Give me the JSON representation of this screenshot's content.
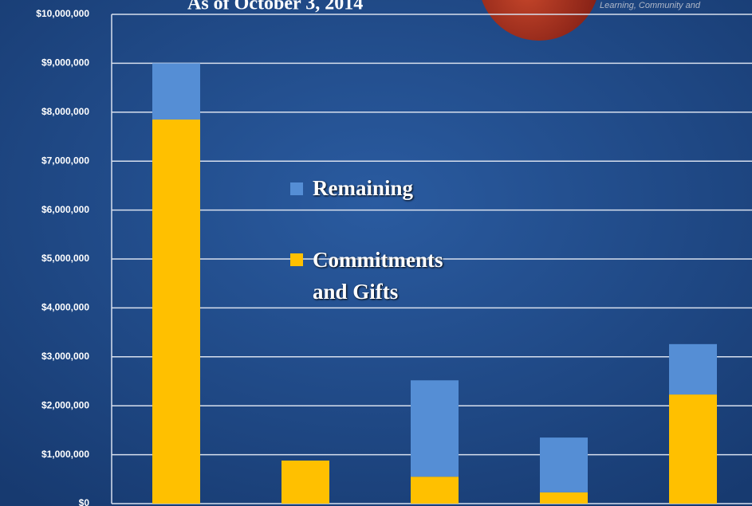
{
  "chart_data": {
    "type": "stacked_bar",
    "title": "As of October 3, 2014",
    "logo_text": "Learning, Community and",
    "categories": [
      null,
      null,
      null,
      null,
      null
    ],
    "series": [
      {
        "name": "Commitments and Gifts",
        "color": "#ffc000",
        "values": [
          7850000,
          880000,
          550000,
          230000,
          2230000
        ]
      },
      {
        "name": "Remaining",
        "color": "#558ed5",
        "values": [
          1150000,
          0,
          1970000,
          1120000,
          1030000
        ]
      }
    ],
    "ylim": [
      0,
      10000000
    ],
    "yticks": [
      {
        "value": 0,
        "label": "$0"
      },
      {
        "value": 1000000,
        "label": "$1,000,000"
      },
      {
        "value": 2000000,
        "label": "$2,000,000"
      },
      {
        "value": 3000000,
        "label": "$3,000,000"
      },
      {
        "value": 4000000,
        "label": "$4,000,000"
      },
      {
        "value": 5000000,
        "label": "$5,000,000"
      },
      {
        "value": 6000000,
        "label": "$6,000,000"
      },
      {
        "value": 7000000,
        "label": "$7,000,000"
      },
      {
        "value": 8000000,
        "label": "$8,000,000"
      },
      {
        "value": 9000000,
        "label": "$9,000,000"
      },
      {
        "value": 10000000,
        "label": "$10,000,000"
      }
    ],
    "grid": true
  }
}
